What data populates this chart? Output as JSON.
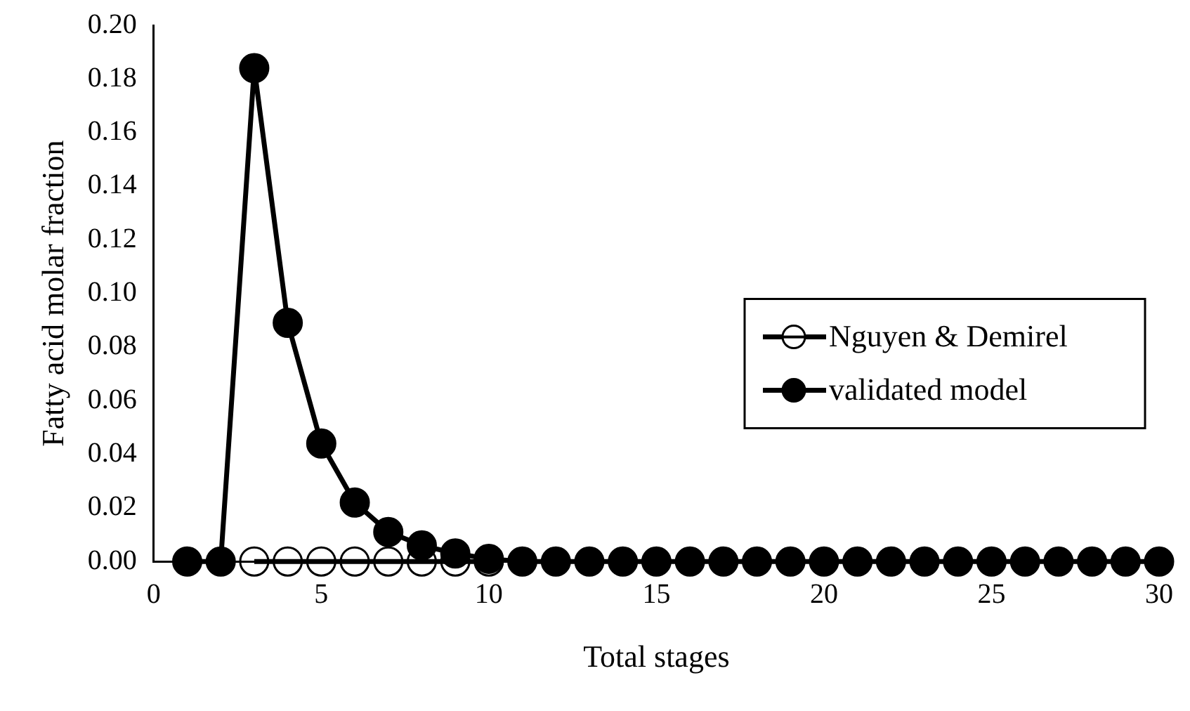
{
  "chart_data": {
    "type": "line",
    "xlabel": "Total stages",
    "ylabel": "Fatty acid molar fraction",
    "xlim": [
      0,
      30
    ],
    "xticks": [
      0,
      5,
      10,
      15,
      20,
      25,
      30
    ],
    "ylim": [
      0,
      0.2
    ],
    "yticks": [
      {
        "value": 0,
        "label": "0.00"
      },
      {
        "value": 0.02,
        "label": "0.02"
      },
      {
        "value": 0.04,
        "label": "0.04"
      },
      {
        "value": 0.06,
        "label": "0.06"
      },
      {
        "value": 0.08,
        "label": "0.08"
      },
      {
        "value": 0.1,
        "label": "0.10"
      },
      {
        "value": 0.12,
        "label": "0.12"
      },
      {
        "value": 0.14,
        "label": "0.14"
      },
      {
        "value": 0.16,
        "label": "0.16"
      },
      {
        "value": 0.18,
        "label": "0.18"
      },
      {
        "value": 0.2,
        "label": "0.20"
      }
    ],
    "legend": "right",
    "grid": false,
    "line_style": "solid",
    "series": [
      {
        "name": "Nguyen & Demirel",
        "color": "#000000",
        "marker": "circle",
        "x": [
          3,
          4,
          5,
          6,
          7,
          8,
          9,
          10
        ],
        "values": [
          0,
          0,
          0,
          0,
          0,
          0,
          0,
          0
        ]
      },
      {
        "name": "validated model",
        "color": "#000000",
        "marker": "circle",
        "x": [
          1,
          2,
          3,
          4,
          5,
          6,
          7,
          8,
          9,
          10,
          11,
          12,
          13,
          14,
          15,
          16,
          17,
          18,
          19,
          20,
          21,
          22,
          23,
          24,
          25,
          26,
          27,
          28,
          29,
          30
        ],
        "values": [
          0,
          0,
          0.184,
          0.089,
          0.044,
          0.022,
          0.011,
          0.006,
          0.003,
          0.001,
          0,
          0,
          0,
          0,
          0,
          0,
          0,
          0,
          0,
          0,
          0,
          0,
          0,
          0,
          0,
          0,
          0,
          0,
          0,
          0
        ]
      }
    ]
  }
}
